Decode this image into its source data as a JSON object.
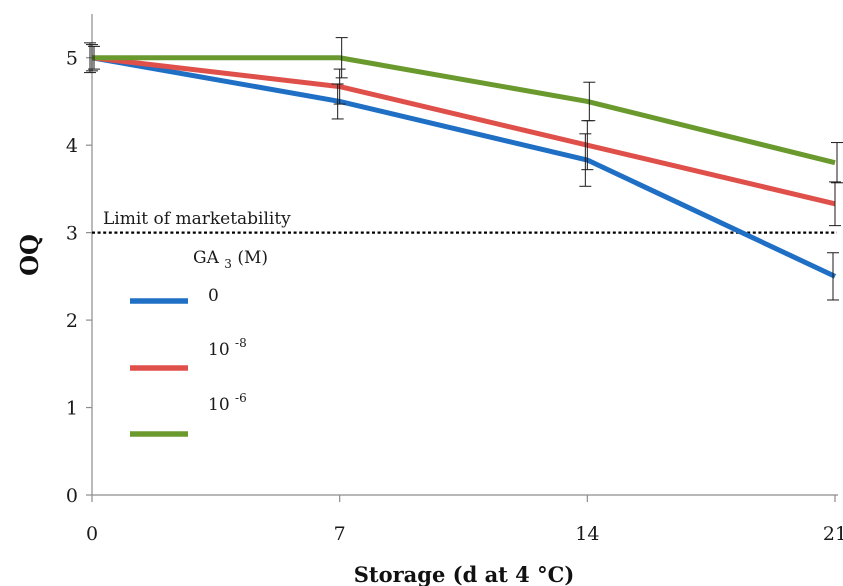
{
  "chart_data": {
    "type": "line",
    "xlabel": "Storage (d at 4 °C)",
    "ylabel": "OQ",
    "x": [
      0,
      7,
      14,
      21
    ],
    "x_ticks": [
      "0",
      "7",
      "14",
      "21"
    ],
    "ylim": [
      0,
      5.5
    ],
    "y_ticks": [
      "0",
      "1",
      "2",
      "3",
      "4",
      "5"
    ],
    "grid": false,
    "legend_title_main": "GA",
    "legend_title_sub": "3",
    "legend_title_unit": "(M)",
    "legend_placement": "left",
    "series": [
      {
        "name": "0",
        "color": "#1F6FC5",
        "values": [
          5.0,
          4.5,
          3.83,
          2.5
        ],
        "errors": [
          0.17,
          0.2,
          0.3,
          0.27
        ]
      },
      {
        "name_base": "10",
        "name_exp": "-8",
        "color": "#E0504A",
        "values": [
          5.0,
          4.67,
          4.0,
          3.33
        ],
        "errors": [
          0.15,
          0.2,
          0.28,
          0.25
        ]
      },
      {
        "name_base": "10",
        "name_exp": "-6",
        "color": "#6A9A2E",
        "values": [
          5.0,
          5.0,
          4.5,
          3.8
        ],
        "errors": [
          0.13,
          0.23,
          0.22,
          0.23
        ]
      }
    ],
    "reference_line": {
      "y": 3.0,
      "label": "Limit of marketability"
    }
  }
}
